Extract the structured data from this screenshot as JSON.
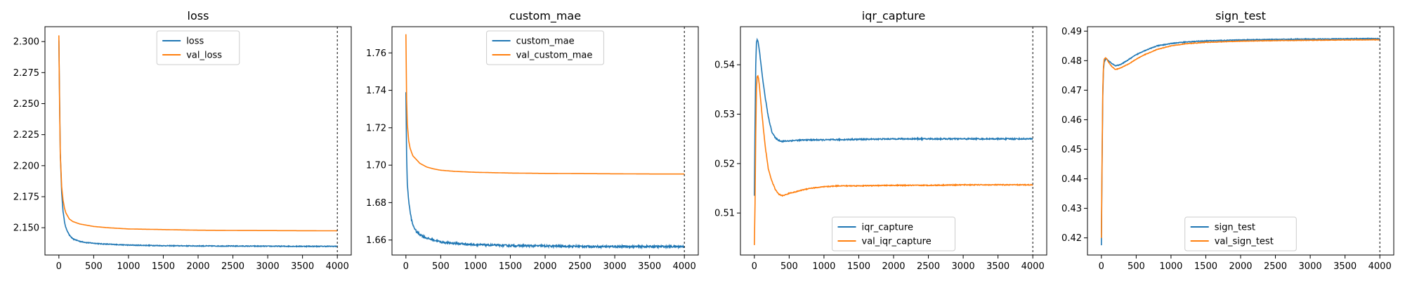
{
  "chart_data": [
    {
      "type": "line",
      "title": "loss",
      "xlabel": "",
      "ylabel": "",
      "xlim": [
        -200,
        4200
      ],
      "ylim": [
        2.128,
        2.312
      ],
      "xticks": [
        0,
        500,
        1000,
        1500,
        2000,
        2500,
        3000,
        3500,
        4000
      ],
      "xtick_labels": [
        "0",
        "500",
        "1000",
        "1500",
        "2000",
        "2500",
        "3000",
        "3500",
        "4000"
      ],
      "yticks": [
        2.15,
        2.175,
        2.2,
        2.225,
        2.25,
        2.275,
        2.3
      ],
      "ytick_labels": [
        "2.150",
        "2.175",
        "2.200",
        "2.225",
        "2.250",
        "2.275",
        "2.300"
      ],
      "vline_x": 4000,
      "legend_position": "upper-center",
      "grid": false,
      "series": [
        {
          "name": "loss",
          "color": "#1f77b4",
          "noise": 0.0003,
          "x": [
            0,
            20,
            40,
            60,
            80,
            100,
            150,
            200,
            250,
            300,
            400,
            500,
            600,
            800,
            1000,
            1500,
            2000,
            2500,
            3000,
            3500,
            4000
          ],
          "y": [
            2.301,
            2.21,
            2.178,
            2.163,
            2.155,
            2.15,
            2.144,
            2.141,
            2.14,
            2.139,
            2.138,
            2.1375,
            2.137,
            2.1365,
            2.136,
            2.1355,
            2.1353,
            2.1352,
            2.1351,
            2.135,
            2.135
          ]
        },
        {
          "name": "val_loss",
          "color": "#ff7f0e",
          "noise": 0,
          "x": [
            0,
            10,
            20,
            40,
            60,
            80,
            100,
            150,
            200,
            250,
            300,
            400,
            500,
            700,
            1000,
            1500,
            2000,
            2500,
            3000,
            3500,
            4000
          ],
          "y": [
            2.305,
            2.25,
            2.21,
            2.183,
            2.172,
            2.166,
            2.162,
            2.157,
            2.155,
            2.154,
            2.153,
            2.152,
            2.151,
            2.15,
            2.149,
            2.1485,
            2.148,
            2.1478,
            2.1477,
            2.1476,
            2.1475
          ]
        }
      ]
    },
    {
      "type": "line",
      "title": "custom_mae",
      "xlabel": "",
      "ylabel": "",
      "xlim": [
        -200,
        4200
      ],
      "ylim": [
        1.652,
        1.774
      ],
      "xticks": [
        0,
        500,
        1000,
        1500,
        2000,
        2500,
        3000,
        3500,
        4000
      ],
      "xtick_labels": [
        "0",
        "500",
        "1000",
        "1500",
        "2000",
        "2500",
        "3000",
        "3500",
        "4000"
      ],
      "yticks": [
        1.66,
        1.68,
        1.7,
        1.72,
        1.74,
        1.76
      ],
      "ytick_labels": [
        "1.66",
        "1.68",
        "1.70",
        "1.72",
        "1.74",
        "1.76"
      ],
      "vline_x": 4000,
      "legend_position": "upper-center",
      "grid": false,
      "series": [
        {
          "name": "custom_mae",
          "color": "#1f77b4",
          "noise": 0.0005,
          "x": [
            0,
            10,
            20,
            40,
            60,
            80,
            100,
            150,
            200,
            250,
            300,
            400,
            500,
            600,
            800,
            1000,
            1500,
            2000,
            2500,
            3000,
            3500,
            4000
          ],
          "y": [
            1.739,
            1.705,
            1.69,
            1.681,
            1.675,
            1.671,
            1.668,
            1.6645,
            1.663,
            1.662,
            1.661,
            1.66,
            1.659,
            1.6585,
            1.658,
            1.6575,
            1.657,
            1.6568,
            1.6566,
            1.6565,
            1.6565,
            1.6565
          ]
        },
        {
          "name": "val_custom_mae",
          "color": "#ff7f0e",
          "noise": 0,
          "x": [
            0,
            10,
            20,
            40,
            60,
            80,
            100,
            150,
            200,
            300,
            400,
            500,
            700,
            1000,
            1500,
            2000,
            2500,
            3000,
            3500,
            4000
          ],
          "y": [
            1.77,
            1.735,
            1.722,
            1.713,
            1.709,
            1.707,
            1.705,
            1.703,
            1.701,
            1.699,
            1.698,
            1.6973,
            1.6967,
            1.6962,
            1.6958,
            1.6956,
            1.6955,
            1.6954,
            1.6953,
            1.6953
          ]
        }
      ]
    },
    {
      "type": "line",
      "title": "iqr_capture",
      "xlabel": "",
      "ylabel": "",
      "xlim": [
        -200,
        4200
      ],
      "ylim": [
        0.5015,
        0.5477
      ],
      "xticks": [
        0,
        500,
        1000,
        1500,
        2000,
        2500,
        3000,
        3500,
        4000
      ],
      "xtick_labels": [
        "0",
        "500",
        "1000",
        "1500",
        "2000",
        "2500",
        "3000",
        "3500",
        "4000"
      ],
      "yticks": [
        0.51,
        0.52,
        0.53,
        0.54
      ],
      "ytick_labels": [
        "0.51",
        "0.52",
        "0.53",
        "0.54"
      ],
      "vline_x": 4000,
      "legend_position": "lower-center",
      "grid": false,
      "series": [
        {
          "name": "iqr_capture",
          "color": "#1f77b4",
          "noise": 0.00012,
          "x": [
            0,
            10,
            20,
            30,
            40,
            50,
            60,
            80,
            100,
            130,
            160,
            200,
            250,
            300,
            350,
            400,
            500,
            600,
            800,
            1000,
            1500,
            2000,
            2500,
            3000,
            3500,
            4000
          ],
          "y": [
            0.5135,
            0.528,
            0.54,
            0.5445,
            0.5452,
            0.5448,
            0.544,
            0.542,
            0.5395,
            0.536,
            0.533,
            0.5295,
            0.5265,
            0.5252,
            0.5247,
            0.5245,
            0.5246,
            0.5247,
            0.5248,
            0.5248,
            0.5249,
            0.525,
            0.525,
            0.525,
            0.525,
            0.525
          ]
        },
        {
          "name": "val_iqr_capture",
          "color": "#ff7f0e",
          "noise": 8e-05,
          "x": [
            0,
            10,
            20,
            30,
            40,
            50,
            60,
            70,
            80,
            100,
            130,
            160,
            200,
            250,
            300,
            350,
            400,
            450,
            500,
            600,
            700,
            800,
            1000,
            1200,
            1500,
            2000,
            2500,
            3000,
            3500,
            4000
          ],
          "y": [
            0.5035,
            0.512,
            0.526,
            0.535,
            0.5375,
            0.5378,
            0.5372,
            0.536,
            0.5345,
            0.5315,
            0.527,
            0.523,
            0.519,
            0.5165,
            0.5148,
            0.5138,
            0.5135,
            0.5137,
            0.514,
            0.5143,
            0.5147,
            0.515,
            0.5153,
            0.5155,
            0.5155,
            0.5156,
            0.5156,
            0.5157,
            0.5157,
            0.5157
          ]
        }
      ]
    },
    {
      "type": "line",
      "title": "sign_test",
      "xlabel": "",
      "ylabel": "",
      "xlim": [
        -200,
        4200
      ],
      "ylim": [
        0.4142,
        0.4915
      ],
      "xticks": [
        0,
        500,
        1000,
        1500,
        2000,
        2500,
        3000,
        3500,
        4000
      ],
      "xtick_labels": [
        "0",
        "500",
        "1000",
        "1500",
        "2000",
        "2500",
        "3000",
        "3500",
        "4000"
      ],
      "yticks": [
        0.42,
        0.43,
        0.44,
        0.45,
        0.46,
        0.47,
        0.48,
        0.49
      ],
      "ytick_labels": [
        "0.42",
        "0.43",
        "0.44",
        "0.45",
        "0.46",
        "0.47",
        "0.48",
        "0.49"
      ],
      "vline_x": 4000,
      "legend_position": "lower-center",
      "grid": false,
      "series": [
        {
          "name": "sign_test",
          "color": "#1f77b4",
          "noise": 0.00012,
          "x": [
            0,
            10,
            20,
            30,
            40,
            60,
            80,
            100,
            150,
            200,
            250,
            300,
            400,
            500,
            600,
            800,
            1000,
            1200,
            1500,
            2000,
            2500,
            3000,
            3500,
            4000
          ],
          "y": [
            0.4175,
            0.445,
            0.468,
            0.477,
            0.4795,
            0.4805,
            0.4805,
            0.48,
            0.479,
            0.4783,
            0.4785,
            0.479,
            0.4805,
            0.482,
            0.4832,
            0.485,
            0.4858,
            0.4863,
            0.4867,
            0.487,
            0.4872,
            0.4873,
            0.4874,
            0.4875
          ]
        },
        {
          "name": "val_sign_test",
          "color": "#ff7f0e",
          "noise": 8e-05,
          "x": [
            0,
            10,
            20,
            30,
            40,
            60,
            80,
            100,
            150,
            200,
            250,
            300,
            400,
            500,
            600,
            800,
            1000,
            1200,
            1500,
            2000,
            2500,
            3000,
            3500,
            4000
          ],
          "y": [
            0.42,
            0.447,
            0.47,
            0.478,
            0.4805,
            0.481,
            0.4805,
            0.4795,
            0.478,
            0.477,
            0.4773,
            0.4778,
            0.479,
            0.4805,
            0.4818,
            0.4838,
            0.485,
            0.4857,
            0.4862,
            0.4866,
            0.4868,
            0.4869,
            0.487,
            0.4871
          ]
        }
      ]
    }
  ]
}
